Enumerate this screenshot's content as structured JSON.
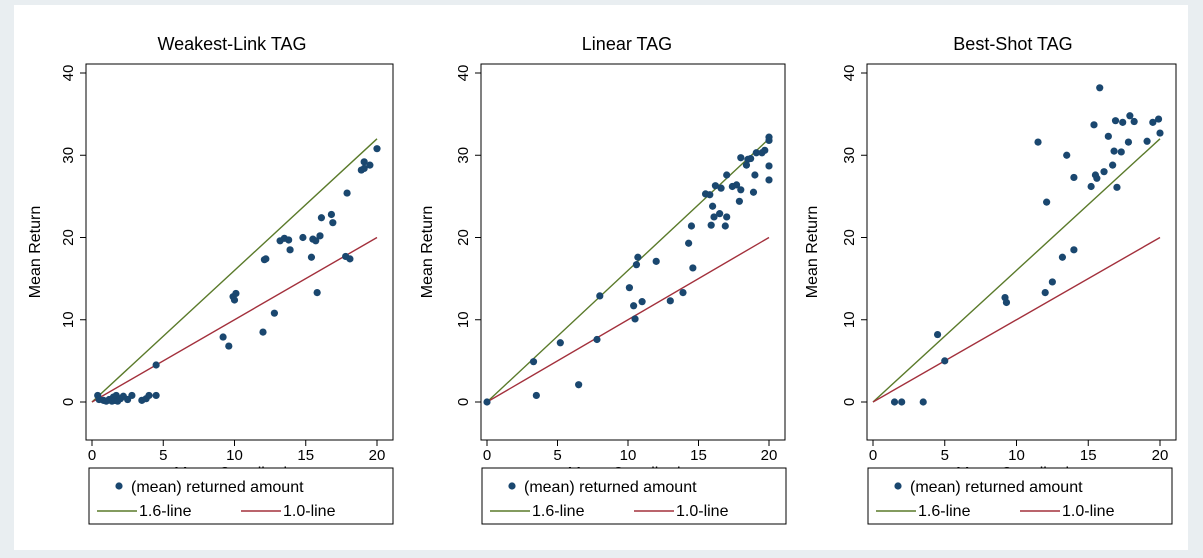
{
  "chart_data": [
    {
      "type": "scatter",
      "title": "Weakest-Link TAG",
      "xlabel": "Mean Contribution",
      "ylabel": "Mean Return",
      "xlim": [
        0,
        20
      ],
      "ylim": [
        0,
        40
      ],
      "xticks": [
        "0",
        "5",
        "10",
        "15",
        "20"
      ],
      "yticks": [
        "0",
        "10",
        "20",
        "30",
        "40"
      ],
      "grid": false,
      "legend_position": "bottom",
      "series": [
        {
          "name": "(mean) returned amount",
          "kind": "points",
          "color": "#1a476f",
          "points": [
            [
              0.4,
              0.8
            ],
            [
              0.5,
              0.3
            ],
            [
              0.8,
              0.2
            ],
            [
              1.0,
              0.1
            ],
            [
              1.2,
              0.3
            ],
            [
              1.4,
              0.1
            ],
            [
              1.5,
              0.6
            ],
            [
              1.6,
              0.2
            ],
            [
              1.7,
              0.8
            ],
            [
              1.8,
              0.1
            ],
            [
              2.0,
              0.4
            ],
            [
              2.2,
              0.7
            ],
            [
              2.5,
              0.3
            ],
            [
              2.8,
              0.8
            ],
            [
              3.5,
              0.2
            ],
            [
              3.8,
              0.4
            ],
            [
              4.0,
              0.8
            ],
            [
              4.5,
              0.8
            ],
            [
              4.5,
              4.5
            ],
            [
              9.2,
              7.9
            ],
            [
              9.6,
              6.8
            ],
            [
              9.9,
              12.8
            ],
            [
              10.0,
              12.4
            ],
            [
              10.1,
              13.2
            ],
            [
              12.0,
              8.5
            ],
            [
              12.1,
              17.3
            ],
            [
              12.2,
              17.4
            ],
            [
              12.8,
              10.8
            ],
            [
              13.2,
              19.6
            ],
            [
              13.5,
              19.9
            ],
            [
              13.8,
              19.7
            ],
            [
              13.9,
              18.5
            ],
            [
              14.8,
              20.0
            ],
            [
              15.4,
              17.6
            ],
            [
              15.5,
              19.8
            ],
            [
              15.7,
              19.6
            ],
            [
              15.8,
              13.3
            ],
            [
              16.0,
              20.2
            ],
            [
              16.1,
              22.4
            ],
            [
              16.8,
              22.8
            ],
            [
              16.9,
              21.8
            ],
            [
              17.8,
              17.7
            ],
            [
              17.9,
              25.4
            ],
            [
              18.1,
              17.4
            ],
            [
              18.9,
              28.2
            ],
            [
              19.1,
              28.4
            ],
            [
              19.1,
              29.2
            ],
            [
              19.5,
              28.8
            ],
            [
              20.0,
              30.8
            ]
          ]
        },
        {
          "name": "1.6-line",
          "kind": "line",
          "color": "#5a7a2a",
          "points": [
            [
              0,
              0
            ],
            [
              20,
              32
            ]
          ]
        },
        {
          "name": "1.0-line",
          "kind": "line",
          "color": "#a3303c",
          "points": [
            [
              0,
              0
            ],
            [
              20,
              20
            ]
          ]
        }
      ]
    },
    {
      "type": "scatter",
      "title": "Linear TAG",
      "xlabel": "Mean Contribution",
      "ylabel": "Mean Return",
      "xlim": [
        0,
        20
      ],
      "ylim": [
        0,
        40
      ],
      "xticks": [
        "0",
        "5",
        "10",
        "15",
        "20"
      ],
      "yticks": [
        "0",
        "10",
        "20",
        "30",
        "40"
      ],
      "grid": false,
      "legend_position": "bottom",
      "series": [
        {
          "name": "(mean) returned amount",
          "kind": "points",
          "color": "#1a476f",
          "points": [
            [
              0.0,
              0.0
            ],
            [
              3.3,
              4.9
            ],
            [
              3.5,
              0.8
            ],
            [
              5.2,
              7.2
            ],
            [
              6.5,
              2.1
            ],
            [
              7.8,
              7.6
            ],
            [
              8.0,
              12.9
            ],
            [
              10.1,
              13.9
            ],
            [
              10.4,
              11.7
            ],
            [
              10.5,
              10.1
            ],
            [
              10.6,
              16.7
            ],
            [
              10.7,
              17.6
            ],
            [
              11.0,
              12.2
            ],
            [
              12.0,
              17.1
            ],
            [
              13.0,
              12.3
            ],
            [
              13.9,
              13.3
            ],
            [
              14.3,
              19.3
            ],
            [
              14.5,
              21.4
            ],
            [
              14.6,
              16.3
            ],
            [
              15.5,
              25.3
            ],
            [
              15.8,
              25.2
            ],
            [
              15.9,
              21.5
            ],
            [
              16.0,
              23.8
            ],
            [
              16.1,
              22.5
            ],
            [
              16.2,
              26.3
            ],
            [
              16.5,
              22.9
            ],
            [
              16.6,
              26.0
            ],
            [
              16.9,
              21.4
            ],
            [
              17.0,
              22.5
            ],
            [
              17.0,
              27.6
            ],
            [
              17.4,
              26.2
            ],
            [
              17.7,
              26.4
            ],
            [
              17.9,
              24.4
            ],
            [
              18.0,
              29.7
            ],
            [
              18.0,
              25.8
            ],
            [
              18.4,
              28.8
            ],
            [
              18.5,
              29.5
            ],
            [
              18.7,
              29.6
            ],
            [
              18.9,
              25.5
            ],
            [
              19.0,
              27.6
            ],
            [
              19.1,
              30.3
            ],
            [
              19.5,
              30.3
            ],
            [
              19.7,
              30.6
            ],
            [
              20.0,
              32.2
            ],
            [
              20.0,
              31.8
            ],
            [
              20.0,
              28.7
            ],
            [
              20.0,
              27.0
            ]
          ]
        },
        {
          "name": "1.6-line",
          "kind": "line",
          "color": "#5a7a2a",
          "points": [
            [
              0,
              0
            ],
            [
              20,
              32
            ]
          ]
        },
        {
          "name": "1.0-line",
          "kind": "line",
          "color": "#a3303c",
          "points": [
            [
              0,
              0
            ],
            [
              20,
              20
            ]
          ]
        }
      ]
    },
    {
      "type": "scatter",
      "title": "Best-Shot TAG",
      "xlabel": "Mean Contribution",
      "ylabel": "Mean Return",
      "xlim": [
        0,
        20
      ],
      "ylim": [
        0,
        40
      ],
      "xticks": [
        "0",
        "5",
        "10",
        "15",
        "20"
      ],
      "yticks": [
        "0",
        "10",
        "20",
        "30",
        "40"
      ],
      "grid": false,
      "legend_position": "bottom",
      "series": [
        {
          "name": "(mean) returned amount",
          "kind": "points",
          "color": "#1a476f",
          "points": [
            [
              1.5,
              0.0
            ],
            [
              2.0,
              0.0
            ],
            [
              3.5,
              0.0
            ],
            [
              4.5,
              8.2
            ],
            [
              5.0,
              5.0
            ],
            [
              9.2,
              12.7
            ],
            [
              9.3,
              12.1
            ],
            [
              11.5,
              31.6
            ],
            [
              12.0,
              13.3
            ],
            [
              12.1,
              24.3
            ],
            [
              12.5,
              14.6
            ],
            [
              13.2,
              17.6
            ],
            [
              13.5,
              30.0
            ],
            [
              14.0,
              27.3
            ],
            [
              14.0,
              18.5
            ],
            [
              15.2,
              26.2
            ],
            [
              15.4,
              33.7
            ],
            [
              15.5,
              27.6
            ],
            [
              15.6,
              27.2
            ],
            [
              15.8,
              38.2
            ],
            [
              16.1,
              28.0
            ],
            [
              16.4,
              32.3
            ],
            [
              16.7,
              28.8
            ],
            [
              16.8,
              30.5
            ],
            [
              16.9,
              34.2
            ],
            [
              17.0,
              26.1
            ],
            [
              17.3,
              30.4
            ],
            [
              17.4,
              34.0
            ],
            [
              17.8,
              31.6
            ],
            [
              17.9,
              34.8
            ],
            [
              18.2,
              34.1
            ],
            [
              19.1,
              31.7
            ],
            [
              19.5,
              34.0
            ],
            [
              19.9,
              34.4
            ],
            [
              20.0,
              32.7
            ]
          ]
        },
        {
          "name": "1.6-line",
          "kind": "line",
          "color": "#5a7a2a",
          "points": [
            [
              0,
              0
            ],
            [
              20,
              32
            ]
          ]
        },
        {
          "name": "1.0-line",
          "kind": "line",
          "color": "#a3303c",
          "points": [
            [
              0,
              0
            ],
            [
              20,
              20
            ]
          ]
        }
      ]
    }
  ]
}
